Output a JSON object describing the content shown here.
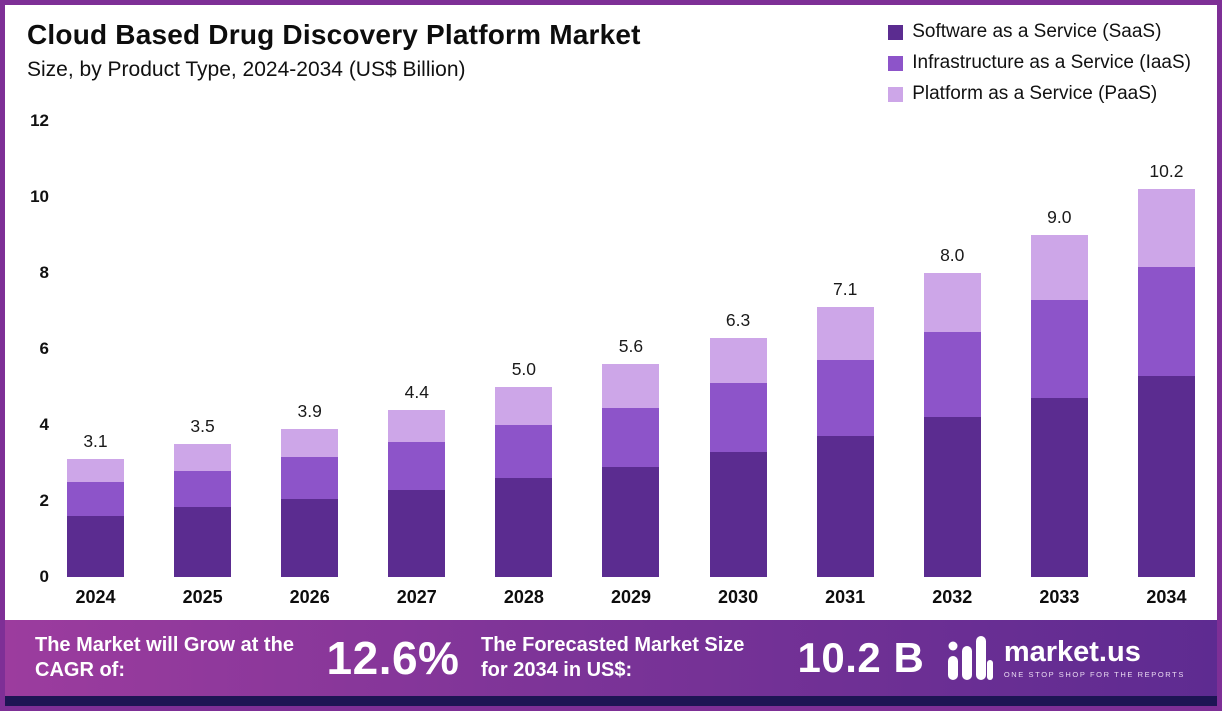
{
  "chart_data": {
    "type": "bar",
    "stacked": true,
    "title": "Cloud Based Drug Discovery Platform Market",
    "subtitle": "Size, by Product Type, 2024-2034 (US$ Billion)",
    "categories": [
      "2024",
      "2025",
      "2026",
      "2027",
      "2028",
      "2029",
      "2030",
      "2031",
      "2032",
      "2033",
      "2034"
    ],
    "series": [
      {
        "name": "Software as a Service (SaaS)",
        "color": "#5b2c90",
        "values": [
          1.6,
          1.85,
          2.05,
          2.3,
          2.6,
          2.9,
          3.3,
          3.7,
          4.2,
          4.7,
          5.3
        ]
      },
      {
        "name": "Infrastructure as a Service (IaaS)",
        "color": "#8d54c9",
        "values": [
          0.9,
          0.95,
          1.1,
          1.25,
          1.4,
          1.55,
          1.8,
          2.0,
          2.25,
          2.6,
          2.85
        ]
      },
      {
        "name": "Platform as a Service (PaaS)",
        "color": "#cda6e8",
        "values": [
          0.6,
          0.7,
          0.75,
          0.85,
          1.0,
          1.15,
          1.2,
          1.4,
          1.55,
          1.7,
          2.05
        ]
      }
    ],
    "totals": [
      "3.1",
      "3.5",
      "3.9",
      "4.4",
      "5.0",
      "5.6",
      "6.3",
      "7.1",
      "8.0",
      "9.0",
      "10.2"
    ],
    "yticks": [
      0,
      2,
      4,
      6,
      8,
      10,
      12
    ],
    "ylim": [
      0,
      12
    ],
    "grid": false,
    "legend_position": "top-right",
    "xlabel": "",
    "ylabel": ""
  },
  "banner": {
    "cagr_label": "The Market will Grow at the CAGR of:",
    "cagr_value": "12.6%",
    "forecast_label": "The Forecasted Market Size for 2034 in US$:",
    "forecast_value": "10.2 B",
    "brand": "market.us",
    "tagline": "ONE STOP SHOP FOR THE REPORTS"
  },
  "colors": {
    "frame_border": "#7e2f96",
    "banner_gradient_start": "#9c3c9e",
    "banner_gradient_end": "#5e2b91",
    "footer_strip": "#1e1554"
  }
}
